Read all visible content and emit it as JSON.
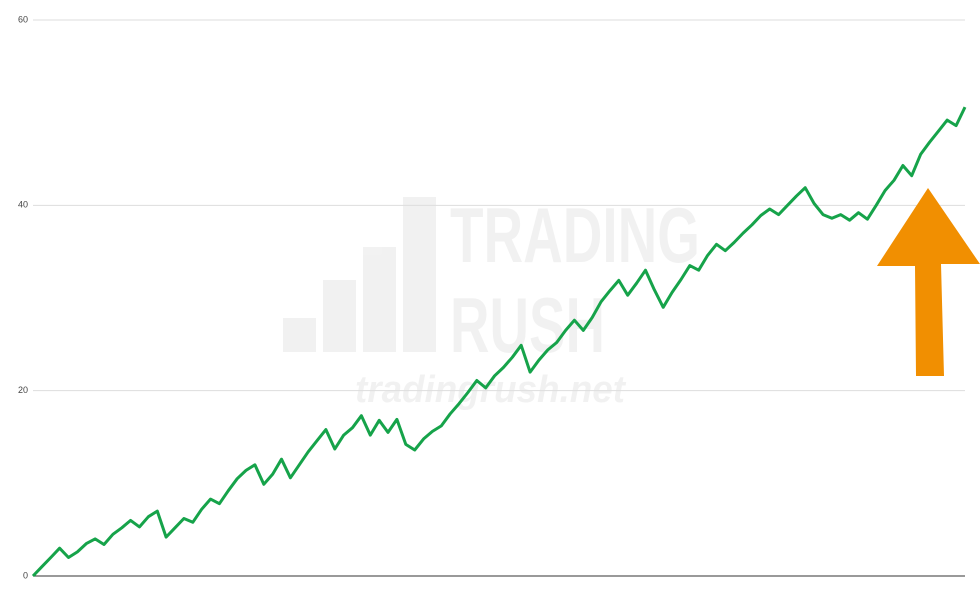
{
  "chart_data": {
    "type": "line",
    "color": "#16a34a",
    "ylim": [
      0,
      60
    ],
    "yticks": [
      0,
      20,
      40,
      60
    ],
    "grid": true,
    "watermark": [
      "TRADING",
      "RUSH",
      "tradingrush.net"
    ],
    "values": [
      0,
      1,
      2,
      3,
      2,
      2.6,
      3.5,
      4,
      3.4,
      4.5,
      5.2,
      6,
      5.3,
      6.4,
      7,
      4.2,
      5.2,
      6.2,
      5.8,
      7.2,
      8.3,
      7.8,
      9.2,
      10.5,
      11.4,
      12,
      9.9,
      11,
      12.6,
      10.6,
      12,
      13.4,
      14.6,
      15.8,
      13.7,
      15.2,
      16,
      17.3,
      15.2,
      16.8,
      15.5,
      16.9,
      14.2,
      13.6,
      14.8,
      15.6,
      16.2,
      17.5,
      18.6,
      19.8,
      21.1,
      20.3,
      21.6,
      22.5,
      23.6,
      24.9,
      22,
      23.3,
      24.4,
      25.2,
      26.5,
      27.6,
      26.5,
      27.9,
      29.6,
      30.8,
      31.9,
      30.3,
      31.6,
      33,
      30.9,
      29,
      30.6,
      32,
      33.5,
      33,
      34.6,
      35.8,
      35.1,
      36,
      37,
      37.9,
      38.9,
      39.6,
      39,
      40,
      41,
      41.9,
      40.2,
      39,
      38.6,
      39,
      38.4,
      39.2,
      38.5,
      40,
      41.6,
      42.7,
      44.3,
      43.2,
      45.5,
      46.8,
      48,
      49.2,
      48.6,
      50.6
    ]
  }
}
